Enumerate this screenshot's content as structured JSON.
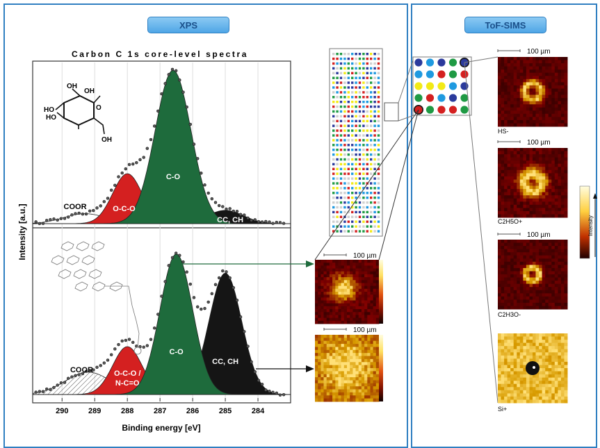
{
  "xps": {
    "badge": "XPS",
    "chart_title": "Carbon C 1s core-level spectra",
    "ylabel": "Intensity [a.u.]",
    "xlabel": "Binding energy  [eV]",
    "x_ticks": [
      "290",
      "289",
      "288",
      "287",
      "286",
      "285",
      "284"
    ],
    "top_spectrum": {
      "peaks": [
        {
          "label": "COOR",
          "center": 289.3,
          "height": 0.06,
          "color": "#ffffff"
        },
        {
          "label": "O-C-O",
          "center": 288.0,
          "height": 0.3,
          "color": "#d42020"
        },
        {
          "label": "C-O",
          "center": 286.6,
          "height": 0.92,
          "color": "#1e6b3c"
        },
        {
          "label": "CC, CH",
          "center": 285.0,
          "height": 0.08,
          "color": "#151515"
        }
      ]
    },
    "bottom_spectrum": {
      "peaks": [
        {
          "label": "COOR",
          "center": 289.2,
          "height": 0.14,
          "color": "#ffffff"
        },
        {
          "label": "O-C-O / N-C=O",
          "center": 288.0,
          "height": 0.3,
          "color": "#d42020"
        },
        {
          "label": "C-O",
          "center": 286.5,
          "height": 0.88,
          "color": "#1e6b3c"
        },
        {
          "label": "CC, CH",
          "center": 285.0,
          "height": 0.76,
          "color": "#151515"
        }
      ]
    },
    "molecule_labels": {
      "oh1": "OH",
      "oh2": "OH",
      "ho1": "HO",
      "ho2": "HO",
      "o": "O",
      "oh3": "OH"
    }
  },
  "scale_labels": {
    "xps_map1": "100 µm",
    "xps_map2": "100 µm",
    "sims1": "100 µm",
    "sims2": "100 µm",
    "sims3": "100 µm"
  },
  "tof_sims": {
    "badge": "ToF-SIMS",
    "ion_labels": {
      "hs": "HS-",
      "c2h5o_pos": "C2H5O+",
      "c2h3o_neg": "C2H3O-",
      "si": "Si+"
    },
    "colorbar_label": "Intensity"
  },
  "array_zoom": {
    "rows": [
      [
        "#2b3a9c",
        "#1f9ae0",
        "#2b3a9c",
        "#1f9a44",
        "#2b3a9c"
      ],
      [
        "#1f9ae0",
        "#1f9ae0",
        "#d42020",
        "#1f9a44",
        "#d42020"
      ],
      [
        "#f2ea16",
        "#f2ea16",
        "#f2ea16",
        "#1f9ae0",
        "#2b3a9c"
      ],
      [
        "#1f9a44",
        "#d42020",
        "#1f9ae0",
        "#2b3a9c",
        "#1f9a44"
      ],
      [
        "#d42020",
        "#1f9a44",
        "#d42020",
        "#d42020",
        "#1f9a44"
      ]
    ]
  }
}
